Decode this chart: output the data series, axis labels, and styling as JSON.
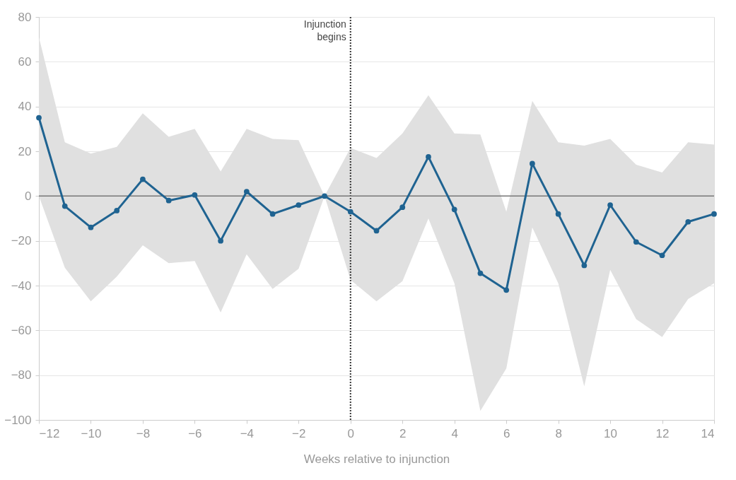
{
  "chart_data": {
    "type": "line",
    "xlabel": "Weeks relative to injunction",
    "x": [
      -12,
      -11,
      -10,
      -9,
      -8,
      -7,
      -6,
      -5,
      -4,
      -3,
      -2,
      -1,
      0,
      1,
      2,
      3,
      4,
      5,
      6,
      7,
      8,
      9,
      10,
      11,
      12,
      13,
      14
    ],
    "series": [
      {
        "color": "#1f6391",
        "values": [
          35,
          -4.5,
          -14,
          -6.5,
          7.5,
          -2,
          0.5,
          -20,
          2,
          -8,
          -4,
          0,
          -7,
          -15.5,
          -5,
          17.5,
          -6,
          -34.5,
          -42,
          14.5,
          -8,
          -31,
          -4,
          -20.5,
          -26.5,
          -11.5,
          -8
        ],
        "lower": [
          0,
          -32,
          -47,
          -36,
          -22,
          -30,
          -29,
          -52,
          -26,
          -41.5,
          -32.5,
          0,
          -37.5,
          -47,
          -38,
          -10,
          -39,
          -96,
          -77,
          -14,
          -39,
          -85,
          -33,
          -55,
          -63,
          -46,
          -39
        ],
        "upper": [
          71,
          24,
          19,
          22,
          37,
          26.5,
          30,
          11,
          30,
          25.5,
          25,
          0,
          21.5,
          17,
          28,
          45,
          28,
          27.5,
          -7,
          42.5,
          24,
          22.5,
          25.5,
          14,
          10.5,
          24,
          23
        ]
      }
    ],
    "xlim": [
      -12,
      14
    ],
    "xticks": [
      -12,
      -10,
      -8,
      -6,
      -4,
      -2,
      0,
      2,
      4,
      6,
      8,
      10,
      12,
      14
    ],
    "ylim": [
      -100,
      80
    ],
    "yticks": [
      -100,
      -80,
      -60,
      -40,
      -20,
      0,
      20,
      40,
      60,
      80
    ],
    "ref_lines": [
      {
        "axis": "x",
        "value": 0,
        "label": "Injunction begins",
        "line_style": "dotted",
        "color": "#333333"
      },
      {
        "axis": "y",
        "value": 0,
        "color": "#777777",
        "line_style": "solid"
      }
    ],
    "grid": "y",
    "marker": "circle",
    "line_style": "solid"
  }
}
